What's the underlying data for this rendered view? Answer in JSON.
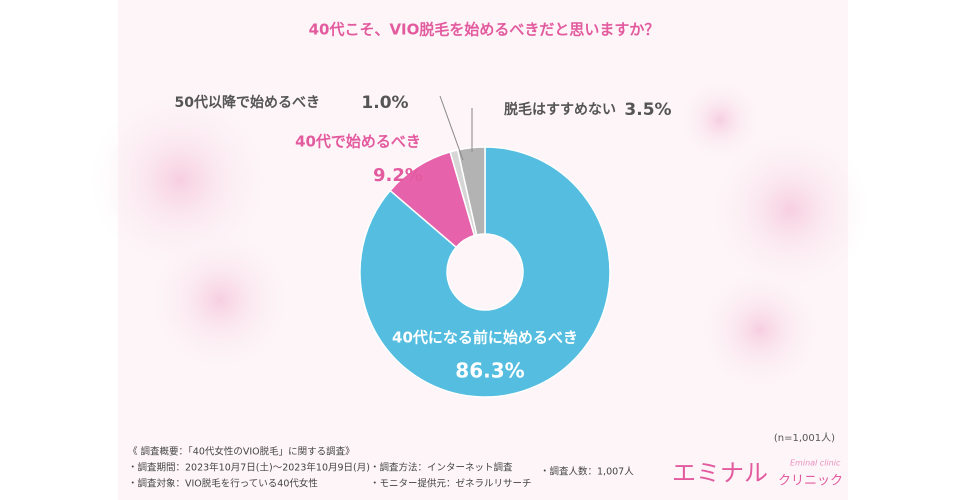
{
  "chart_data": {
    "type": "donut",
    "title": "40代こそ、VIO脱毛を始めるべきだと思いますか？",
    "categories": [
      "40代になる前に始めるべき",
      "40代で始めるべき",
      "50代以降で始めるべき",
      "脱毛はすすめない"
    ],
    "values": [
      86.3,
      9.2,
      1.0,
      3.5
    ],
    "value_labels": [
      "86.3%",
      "9.2%",
      "1.0%",
      "3.5%"
    ],
    "colors": [
      "#54bde0",
      "#e662ab",
      "#d6d6d6",
      "#b3b3b3"
    ]
  },
  "note": "(n=1,001人)",
  "footer": {
    "heading": "《 調査概要：「40代女性のVIO脱毛」に関する調査》",
    "items": [
      "・調査期間：2023年10月7日(土)～2023年10月9日(月)",
      "・調査対象：VIO脱毛を行っている40代女性",
      "・調査方法：インターネット調査",
      "・モニター提供元：ゼネラルリサーチ",
      "・調査人数：1,007人"
    ]
  },
  "logo": {
    "name": "エミナル",
    "sub": "クリニック",
    "en": "Eminal clinic"
  }
}
